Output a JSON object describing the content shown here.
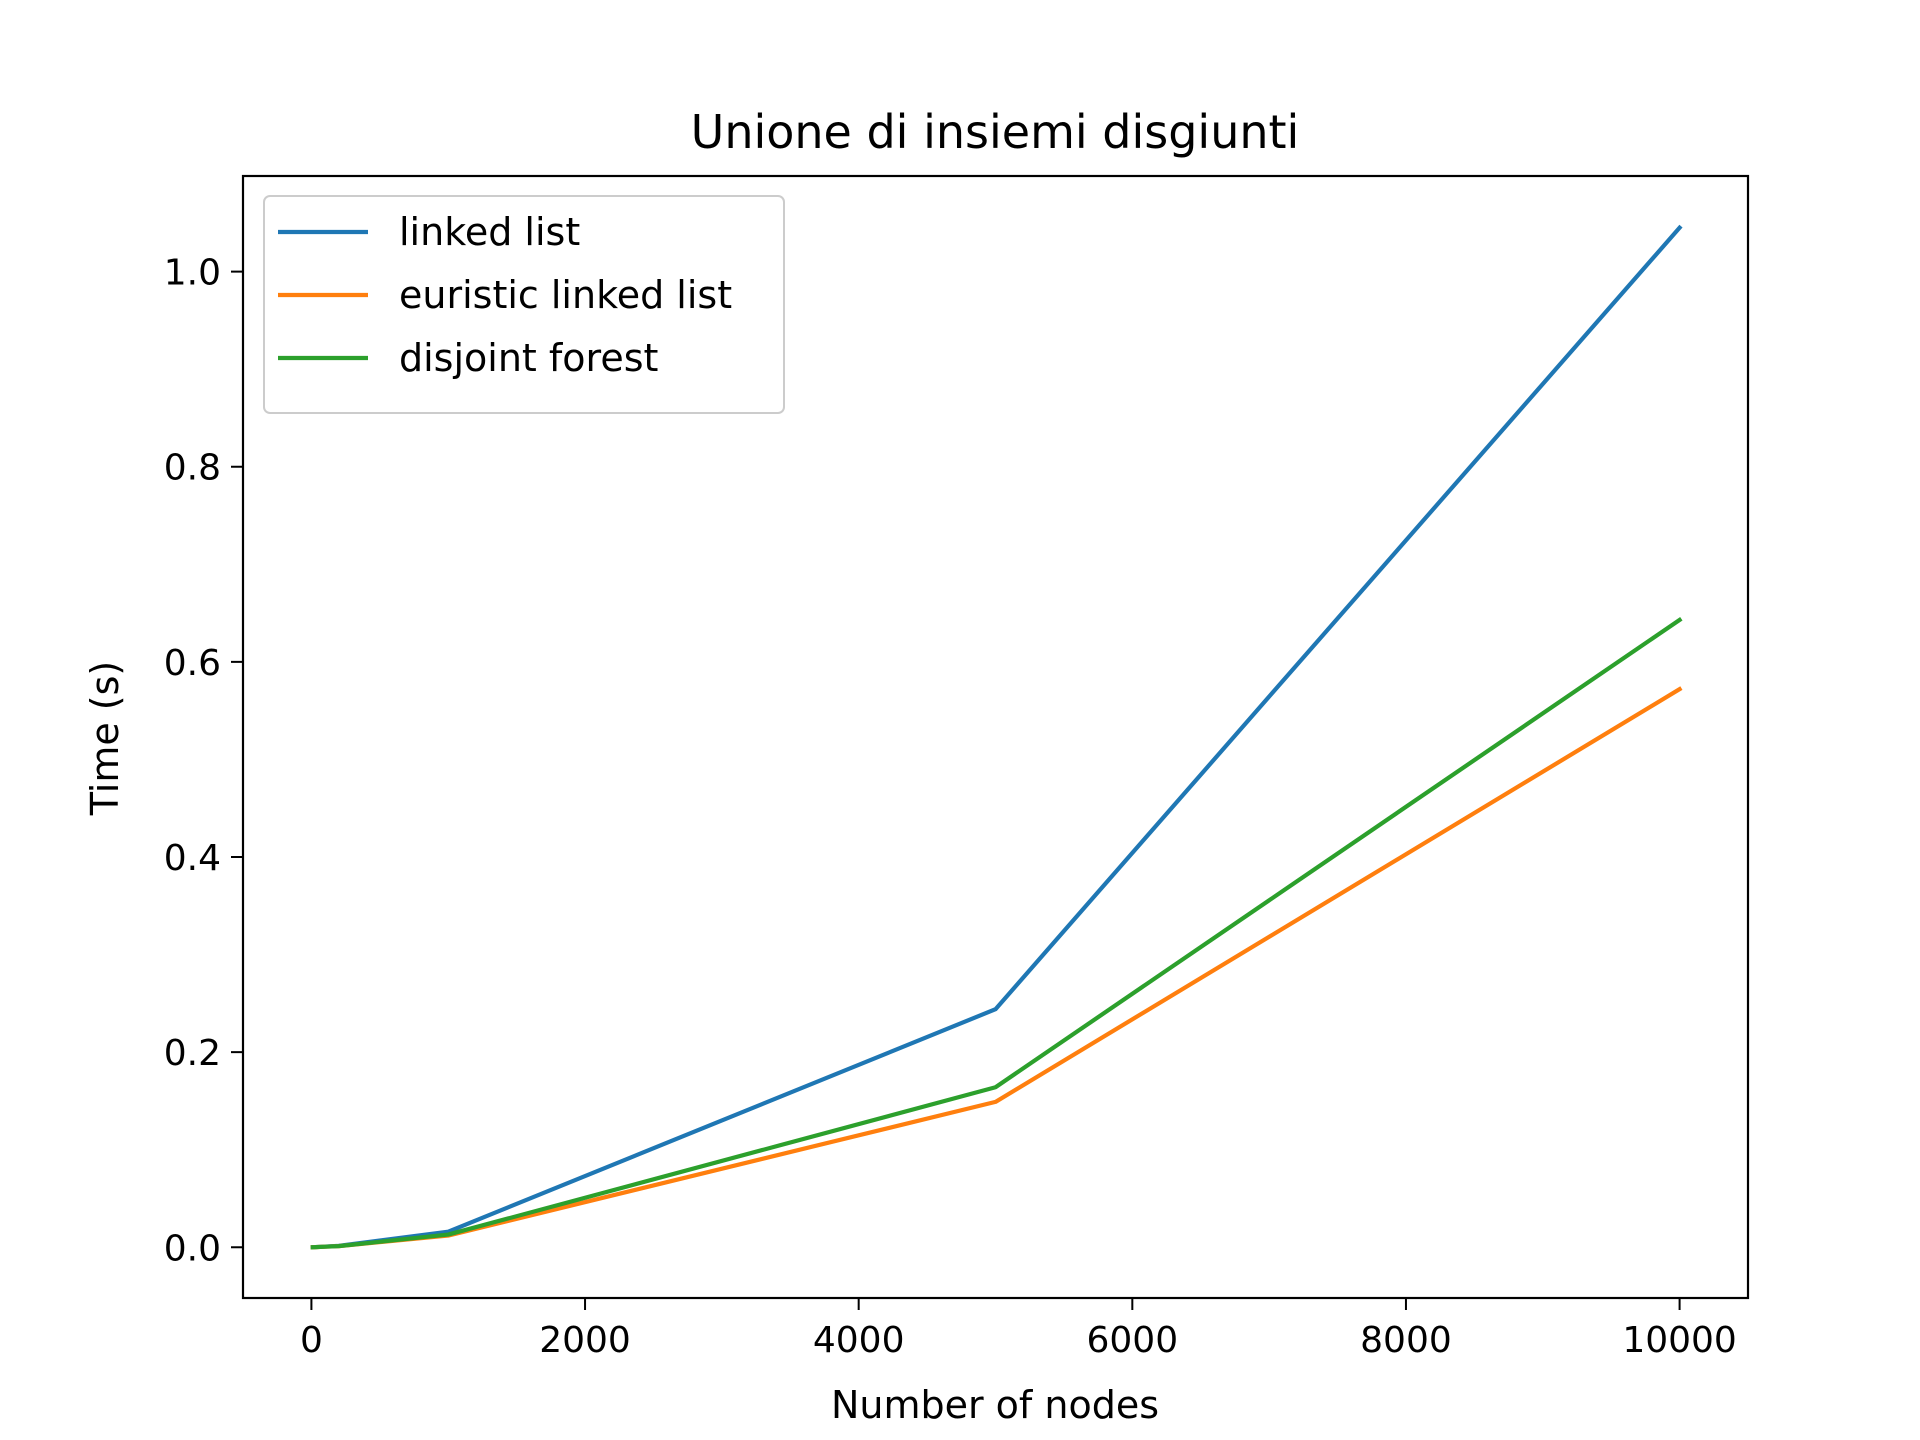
{
  "chart_data": {
    "type": "line",
    "title": "Unione di insiemi disgiunti",
    "xlabel": "Number of nodes",
    "ylabel": "Time (s)",
    "xlim": [
      -500,
      10500
    ],
    "ylim": [
      -0.052,
      1.098
    ],
    "xticks": [
      0,
      2000,
      4000,
      6000,
      8000,
      10000
    ],
    "xtick_labels": [
      "0",
      "2000",
      "4000",
      "6000",
      "8000",
      "10000"
    ],
    "yticks": [
      0.0,
      0.2,
      0.4,
      0.6,
      0.8,
      1.0
    ],
    "ytick_labels": [
      "0.0",
      "0.2",
      "0.4",
      "0.6",
      "0.8",
      "1.0"
    ],
    "grid": false,
    "legend_position": "top-left",
    "x": [
      10,
      100,
      200,
      1000,
      5000,
      10000
    ],
    "series": [
      {
        "name": "linked list",
        "color": "#1f77b4",
        "values": [
          0.0,
          0.0007,
          0.0015,
          0.016,
          0.244,
          1.045
        ]
      },
      {
        "name": "euristic linked list",
        "color": "#ff7f0e",
        "values": [
          0.0,
          0.0006,
          0.0012,
          0.012,
          0.149,
          0.572
        ]
      },
      {
        "name": "disjoint forest",
        "color": "#2ca02c",
        "values": [
          0.0,
          0.0006,
          0.0012,
          0.013,
          0.164,
          0.643
        ]
      }
    ]
  }
}
